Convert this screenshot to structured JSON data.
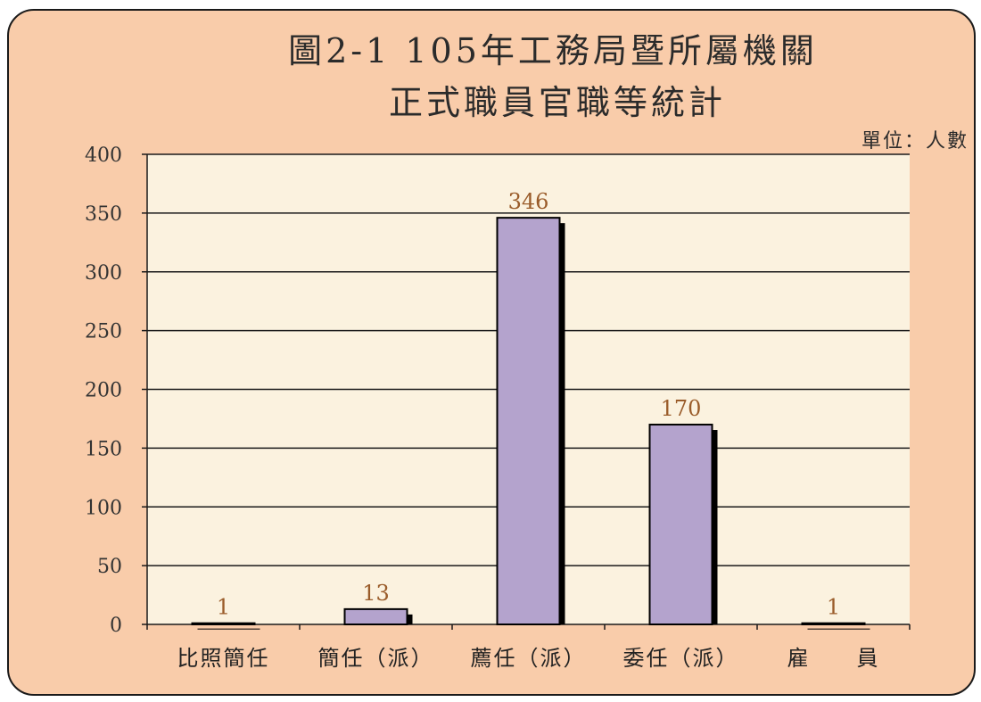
{
  "chart_data": {
    "type": "bar",
    "title_line1": "圖2-1 105年工務局暨所屬機關",
    "title_line2": "正式職員官職等統計",
    "unit_label": "單位：人數",
    "categories": [
      "比照簡任",
      "簡任（派）",
      "薦任（派）",
      "委任（派）",
      "雇　　員"
    ],
    "values": [
      1,
      13,
      346,
      170,
      1
    ],
    "data_labels": [
      "1",
      "13",
      "346",
      "170",
      "1"
    ],
    "yticks": [
      "0",
      "50",
      "100",
      "150",
      "200",
      "250",
      "300",
      "350",
      "400"
    ],
    "ylim": [
      0,
      400
    ],
    "grid": true,
    "bar_color": "#b4a3cd",
    "panel_color": "#f9ccaa",
    "plot_bg_color": "#fbf2df"
  }
}
